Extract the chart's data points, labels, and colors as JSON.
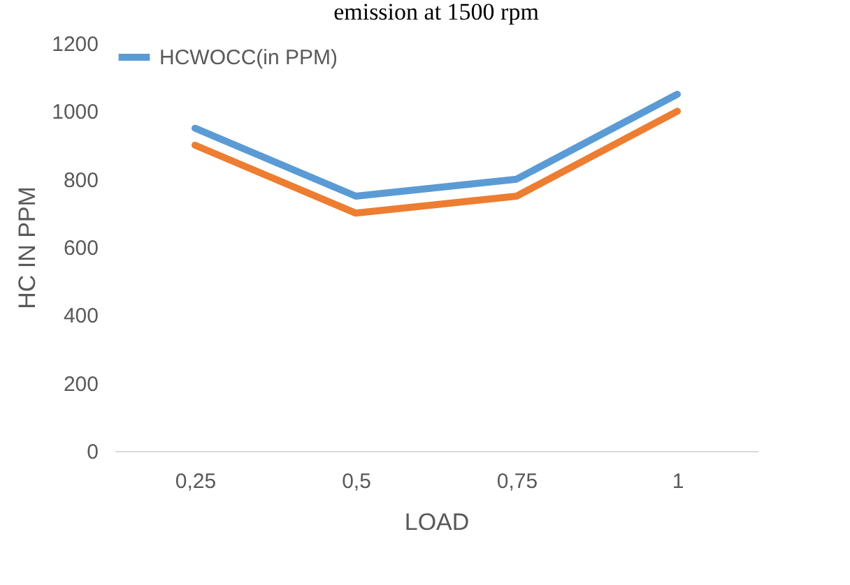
{
  "chart_data": {
    "type": "line",
    "title": "emission at 1500 rpm",
    "xlabel": "LOAD",
    "ylabel": "HC IN PPM",
    "categories": [
      "0,25",
      "0,5",
      "0,75",
      "1"
    ],
    "series": [
      {
        "name": "HCWOCC(in PPM)",
        "color": "#5b9bd5",
        "values": [
          950,
          750,
          800,
          1050
        ]
      },
      {
        "color": "#ed7d31",
        "values": [
          900,
          700,
          750,
          1000
        ]
      }
    ],
    "ylim": [
      0,
      1200
    ],
    "yticks": [
      0,
      200,
      400,
      600,
      800,
      1000,
      1200
    ],
    "grid": false,
    "legend": "top",
    "marker": "none",
    "line_style": "solid"
  }
}
